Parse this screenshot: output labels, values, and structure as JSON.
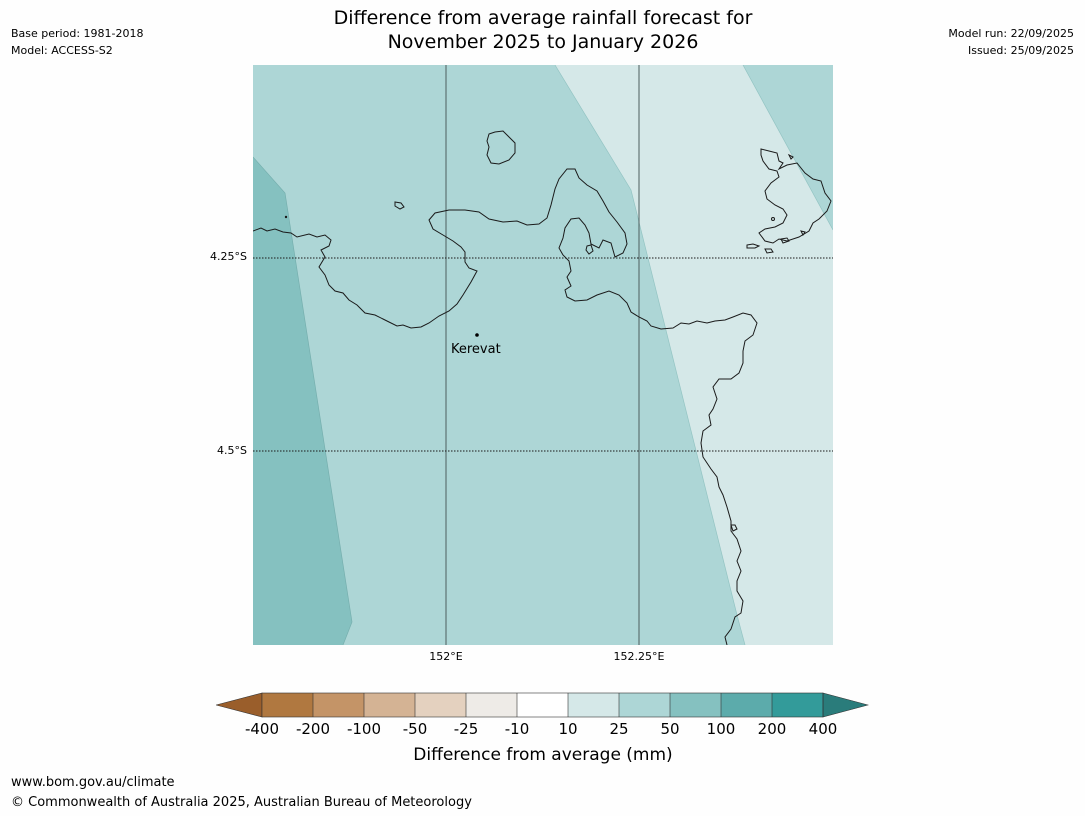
{
  "header": {
    "base_period": "Base period: 1981-2018",
    "model": "Model: ACCESS-S2",
    "model_run": "Model run: 22/09/2025",
    "issued": "Issued: 25/09/2025",
    "title_line1": "Difference from average rainfall forecast for",
    "title_line2": "November 2025 to January 2026"
  },
  "map": {
    "lat_labels": [
      "4.25°S",
      "4.5°S"
    ],
    "lon_labels": [
      "152°E",
      "152.25°E"
    ],
    "place": "Kerevat",
    "colors": {
      "band_50_100": "#85c1c0",
      "band_25_50": "#add6d6",
      "band_10_25": "#d5e8e8",
      "coast": "#1a1a1a",
      "grid": "#4d5e5e"
    }
  },
  "colorbar": {
    "ticks": [
      "-400",
      "-200",
      "-100",
      "-50",
      "-25",
      "-10",
      "10",
      "25",
      "50",
      "100",
      "200",
      "400"
    ],
    "colors": [
      "#9a5e2b",
      "#b07840",
      "#c49467",
      "#d4b394",
      "#e4d1bf",
      "#eeebe7",
      "#ffffff",
      "#d5e8e8",
      "#add6d6",
      "#85c1c0",
      "#5cabab",
      "#339b9a",
      "#2a7c7b"
    ],
    "label": "Difference from average (mm)"
  },
  "footer": {
    "url": "www.bom.gov.au/climate",
    "copyright": "© Commonwealth of Australia 2025, Australian Bureau of Meteorology"
  }
}
